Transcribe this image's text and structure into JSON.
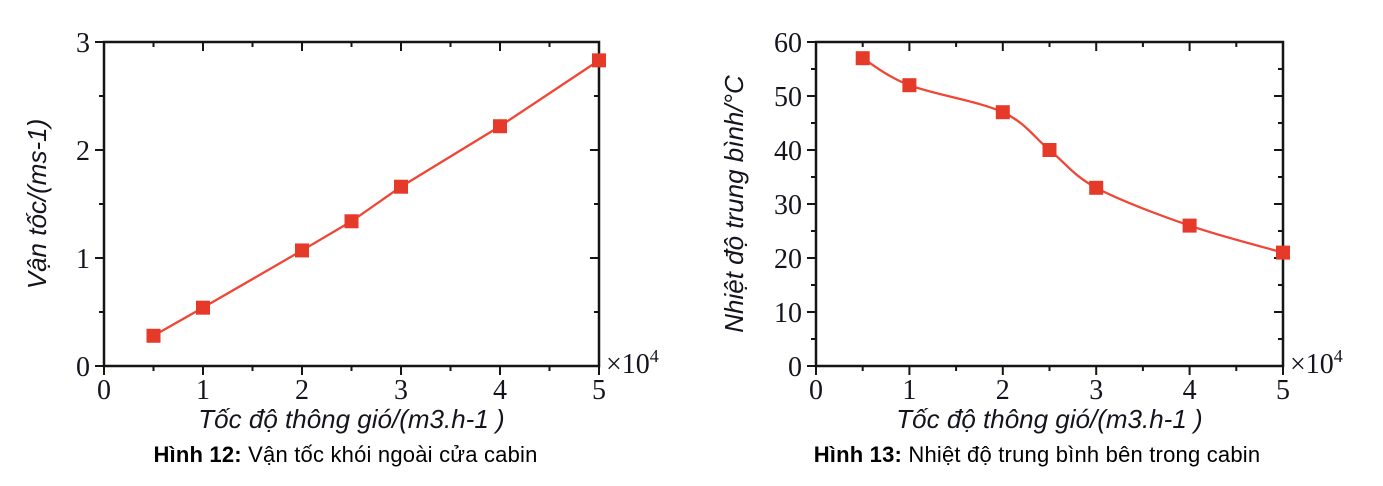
{
  "chart_data": [
    {
      "type": "line",
      "caption_bold": "Hình 12:",
      "caption_rest": " Vận tốc khói ngoài cửa cabin",
      "xlabel": "Tốc độ thông gió/(m3.h-1 )",
      "ylabel": "Vận tốc/(ms-1)",
      "x": [
        0.5,
        1,
        2,
        2.5,
        3,
        4,
        5
      ],
      "values": [
        0.28,
        0.54,
        1.07,
        1.34,
        1.66,
        2.22,
        2.83
      ],
      "x_unit_multiplier": 10000,
      "xlim": [
        0,
        5
      ],
      "ylim": [
        0,
        3
      ],
      "xticks": [
        0,
        1,
        2,
        3,
        4,
        5
      ],
      "yticks": [
        0,
        1,
        2,
        3
      ],
      "x_minor_step": 0.5,
      "y_minor_step": 0.5,
      "x_offset_base": "×10",
      "x_offset_exp": "4",
      "smooth": false,
      "line_color": "#ef4635",
      "marker_color": "#e53a2a",
      "axis_color": "#151515",
      "grid": false,
      "legend": "none",
      "marker": "square"
    },
    {
      "type": "line",
      "caption_bold": "Hình 13:",
      "caption_rest": " Nhiệt độ trung bình bên trong cabin",
      "xlabel": "Tốc độ thông gió/(m3.h-1 )",
      "ylabel": "Nhiệt độ trung bình/°C",
      "x": [
        0.5,
        1,
        2,
        2.5,
        3,
        4,
        5
      ],
      "values": [
        57,
        52,
        47,
        40,
        33,
        26,
        21
      ],
      "x_unit_multiplier": 10000,
      "xlim": [
        0,
        5
      ],
      "ylim": [
        0,
        60
      ],
      "xticks": [
        0,
        1,
        2,
        3,
        4,
        5
      ],
      "yticks": [
        0,
        10,
        20,
        30,
        40,
        50,
        60
      ],
      "x_minor_step": 0.5,
      "y_minor_step": 5,
      "x_offset_base": "×10",
      "x_offset_exp": "4",
      "smooth": true,
      "line_color": "#ef4635",
      "marker_color": "#e53a2a",
      "axis_color": "#151515",
      "grid": false,
      "legend": "none",
      "marker": "square"
    }
  ]
}
